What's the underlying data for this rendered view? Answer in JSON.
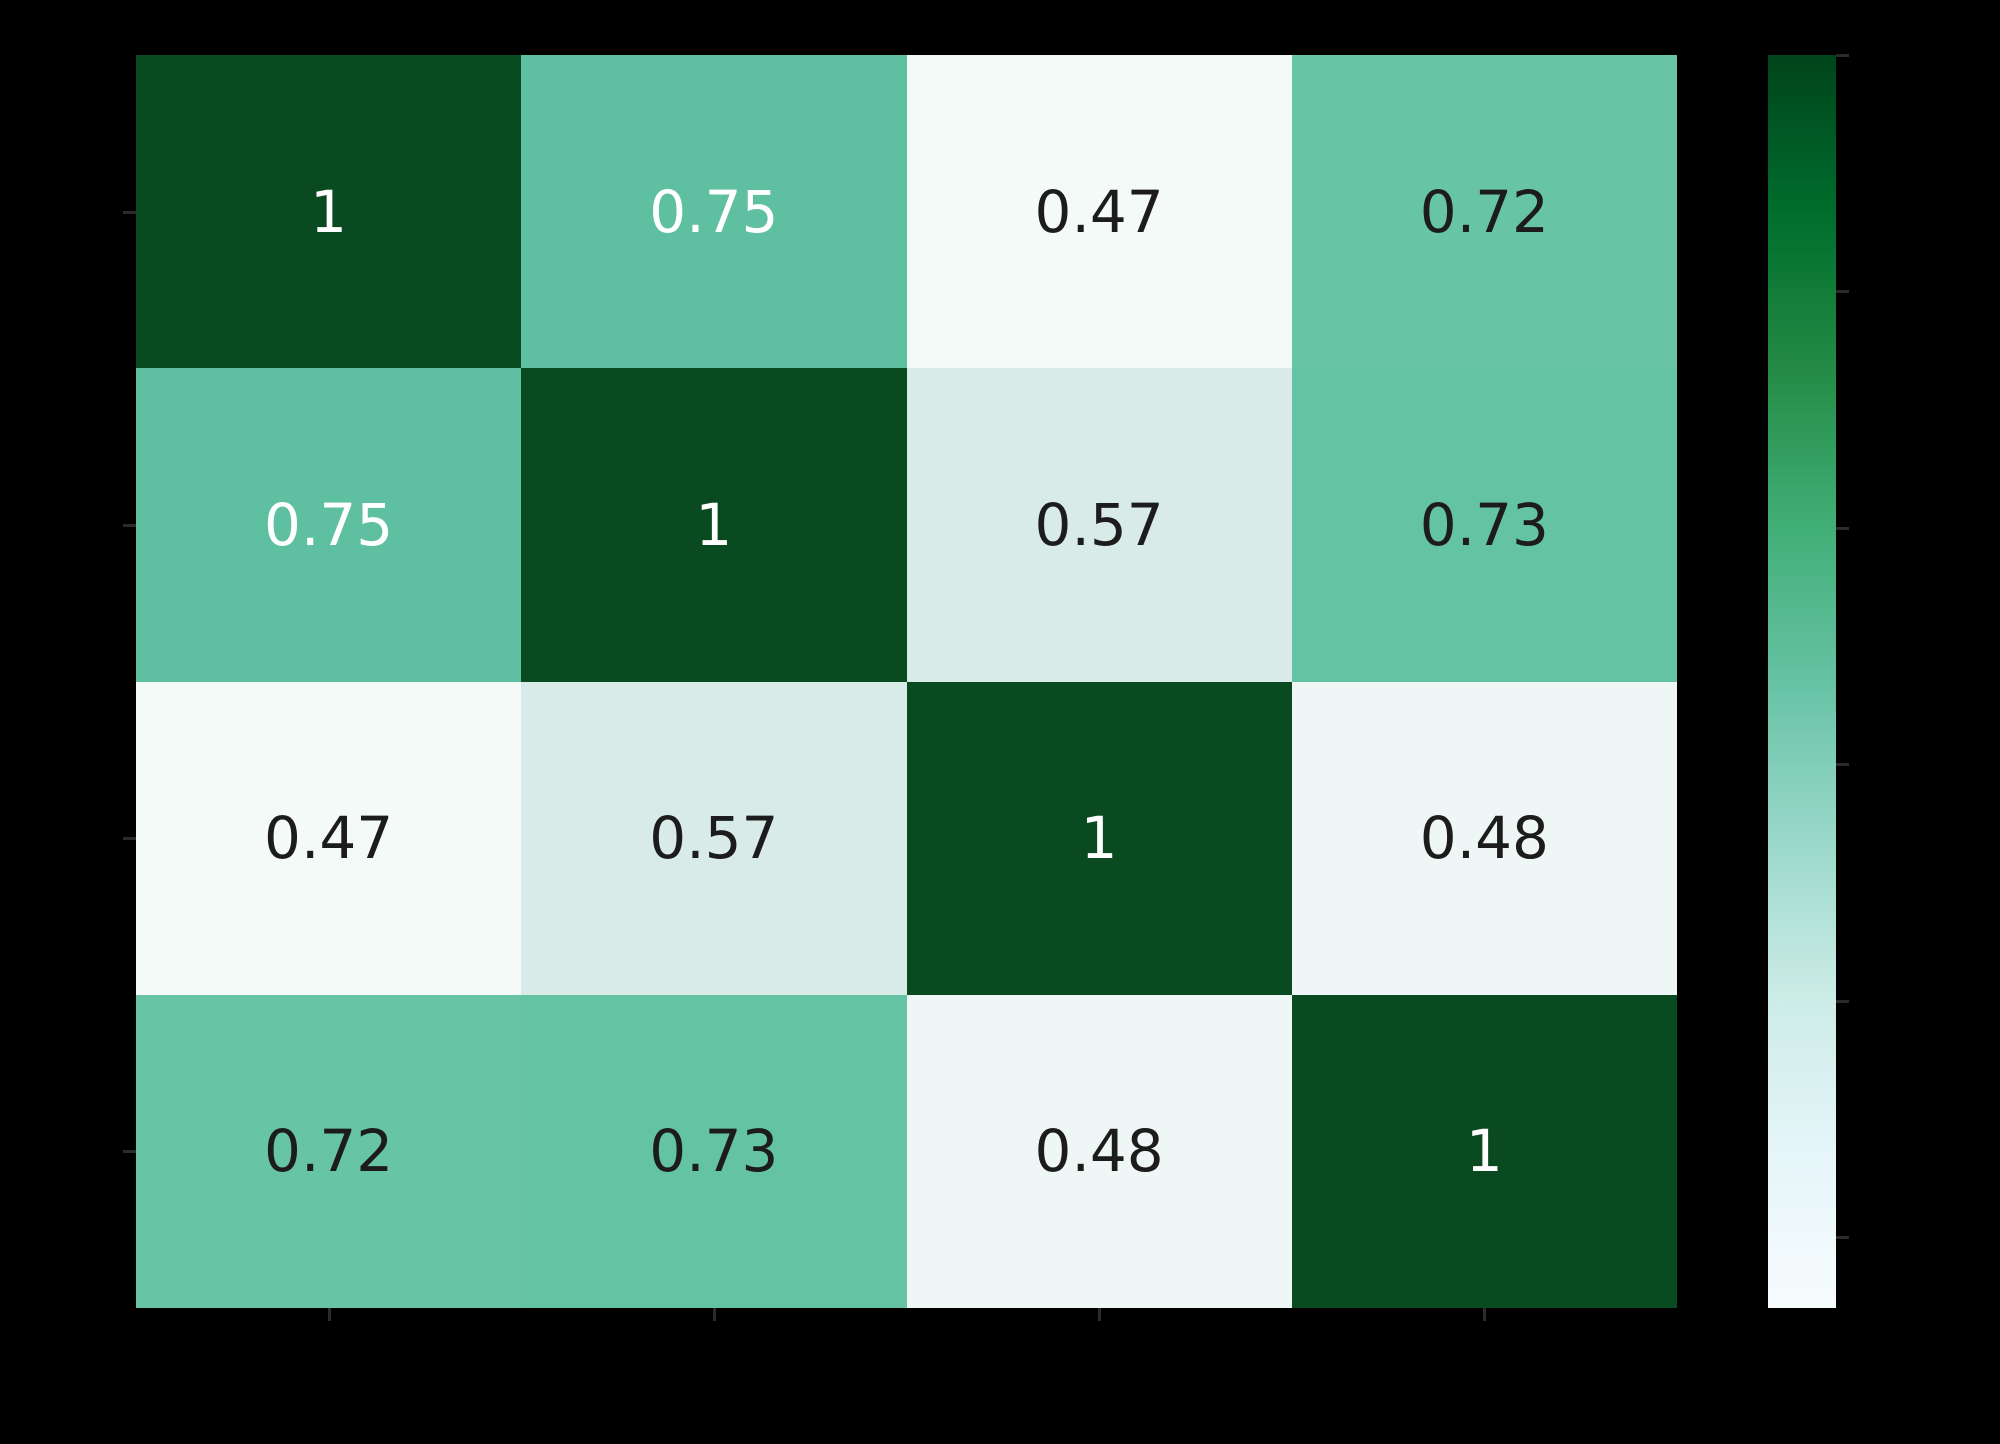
{
  "background": "#000000",
  "chart_data": {
    "type": "heatmap",
    "title": "",
    "xlabel": "",
    "ylabel": "",
    "rows": 4,
    "cols": 4,
    "x_tick_labels_visible": false,
    "y_tick_labels_visible": false,
    "matrix": [
      [
        1.0,
        0.75,
        0.47,
        0.72
      ],
      [
        0.75,
        1.0,
        0.57,
        0.73
      ],
      [
        0.47,
        0.57,
        1.0,
        0.48
      ],
      [
        0.72,
        0.73,
        0.48,
        1.0
      ]
    ],
    "cell_labels": [
      [
        "1",
        "0.75",
        "0.47",
        "0.72"
      ],
      [
        "0.75",
        "1",
        "0.57",
        "0.73"
      ],
      [
        "0.47",
        "0.57",
        "1",
        "0.48"
      ],
      [
        "0.72",
        "0.73",
        "0.48",
        "1"
      ]
    ],
    "colormap": "BuGn",
    "vmin": 0.47,
    "vmax": 1.0,
    "value_colors": {
      "1": "#0a4a21",
      "0.75": "#5ec0a0",
      "0.73": "#64c3a3",
      "0.72": "#67c5a5",
      "0.57": "#d8ebe8",
      "0.48": "#eff7f6",
      "0.47": "#f4faf8"
    },
    "annotation_text_threshold": 0.735,
    "annotation_colors": {
      "light": "#ffffff",
      "dark": "#1c1c1c"
    },
    "axis_tick_color": "#2b2b2b",
    "colorbar": {
      "position": "right",
      "gradient_stops_bottom_to_top": [
        "#f7fcfd",
        "#e5f5f9",
        "#ccece6",
        "#99d8c9",
        "#66c2a4",
        "#41ae76",
        "#238b45",
        "#006d2c",
        "#00441b"
      ],
      "tick_fractions_from_top": [
        0,
        0.1887,
        0.3774,
        0.566,
        0.7547,
        0.9434
      ]
    }
  }
}
